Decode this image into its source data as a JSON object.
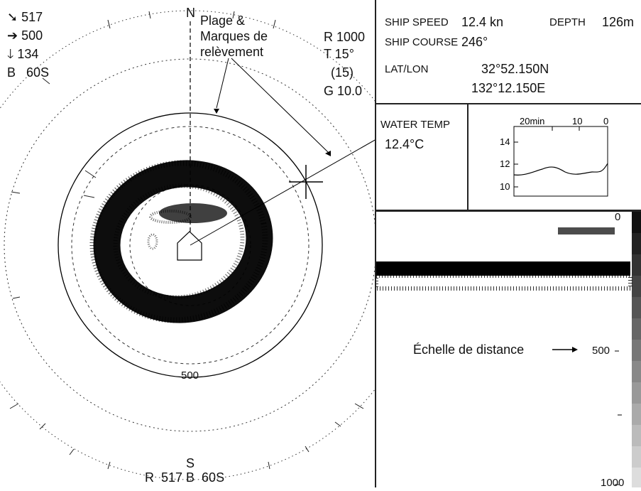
{
  "sonar_panel": {
    "top_left": {
      "range_arrow": "➘",
      "range_value": "517",
      "horiz_arrow": "➔",
      "horiz_value": "500",
      "depth_arrow": "🡓",
      "depth_value": "134",
      "bearing_label": "B",
      "bearing_value": "60S"
    },
    "north_label": "N",
    "south_label": "S",
    "annotation_bearing": "Plage &\nMarques de\nrelèvement",
    "top_right": {
      "range": "R 1000",
      "tilt": "T 15°",
      "tilt_sub": "(15)",
      "gain": "G 10.0"
    },
    "range_ring_label": "500",
    "bottom_readout": "R  517 B  60S"
  },
  "nav_panel": {
    "ship_speed_label": "SHIP SPEED",
    "ship_speed_value": "12.4 kn",
    "depth_label": "DEPTH",
    "depth_value": "126m",
    "ship_course_label": "SHIP COURSE",
    "ship_course_value": "246°",
    "latlon_label": "LAT/LON",
    "lat_value": "32°52.150N",
    "lon_value": "132°12.150E"
  },
  "water_temp_panel": {
    "label": "WATER TEMP",
    "value": "12.4°C",
    "graph_x_ticks": [
      "20min",
      "10",
      "0"
    ],
    "graph_y_ticks": [
      "14",
      "12",
      "10"
    ]
  },
  "echo_panel": {
    "top_scale": "0",
    "mid_scale": "500",
    "bottom_scale": "1000",
    "annotation": "Échelle de distance"
  },
  "colors": {
    "ink": "#111111",
    "background": "#ffffff",
    "echo": "#000000"
  }
}
